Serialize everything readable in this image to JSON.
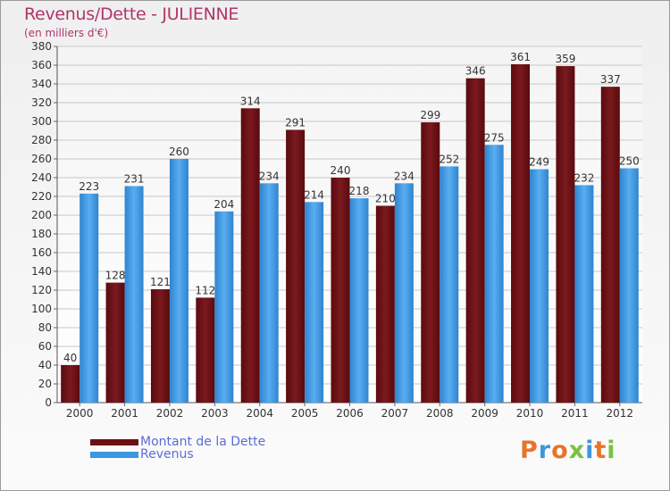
{
  "title": "Revenus/Dette - JULIENNE",
  "subtitle": "(en milliers d'€)",
  "colors": {
    "debt": "#6d1014",
    "revenue": "#3d96df",
    "title": "#b0356a",
    "legend_text": "#5a6cd8"
  },
  "legend": [
    {
      "label": "Montant de la Dette",
      "color": "#6d1014"
    },
    {
      "label": "Revenus",
      "color": "#3d96df"
    }
  ],
  "logo": "Proxiti",
  "chart_data": {
    "type": "bar",
    "title": "Revenus/Dette - JULIENNE",
    "subtitle": "(en milliers d'€)",
    "categories": [
      "2000",
      "2001",
      "2002",
      "2003",
      "2004",
      "2005",
      "2006",
      "2007",
      "2008",
      "2009",
      "2010",
      "2011",
      "2012"
    ],
    "series": [
      {
        "name": "Montant de la Dette",
        "values": [
          40,
          128,
          121,
          112,
          314,
          291,
          240,
          210,
          299,
          346,
          361,
          359,
          337
        ]
      },
      {
        "name": "Revenus",
        "values": [
          223,
          231,
          260,
          204,
          234,
          214,
          218,
          234,
          252,
          275,
          249,
          232,
          250
        ]
      }
    ],
    "ylim": [
      0,
      380
    ],
    "ytick_step": 20,
    "grid": true,
    "legend_position": "bottom-left"
  }
}
